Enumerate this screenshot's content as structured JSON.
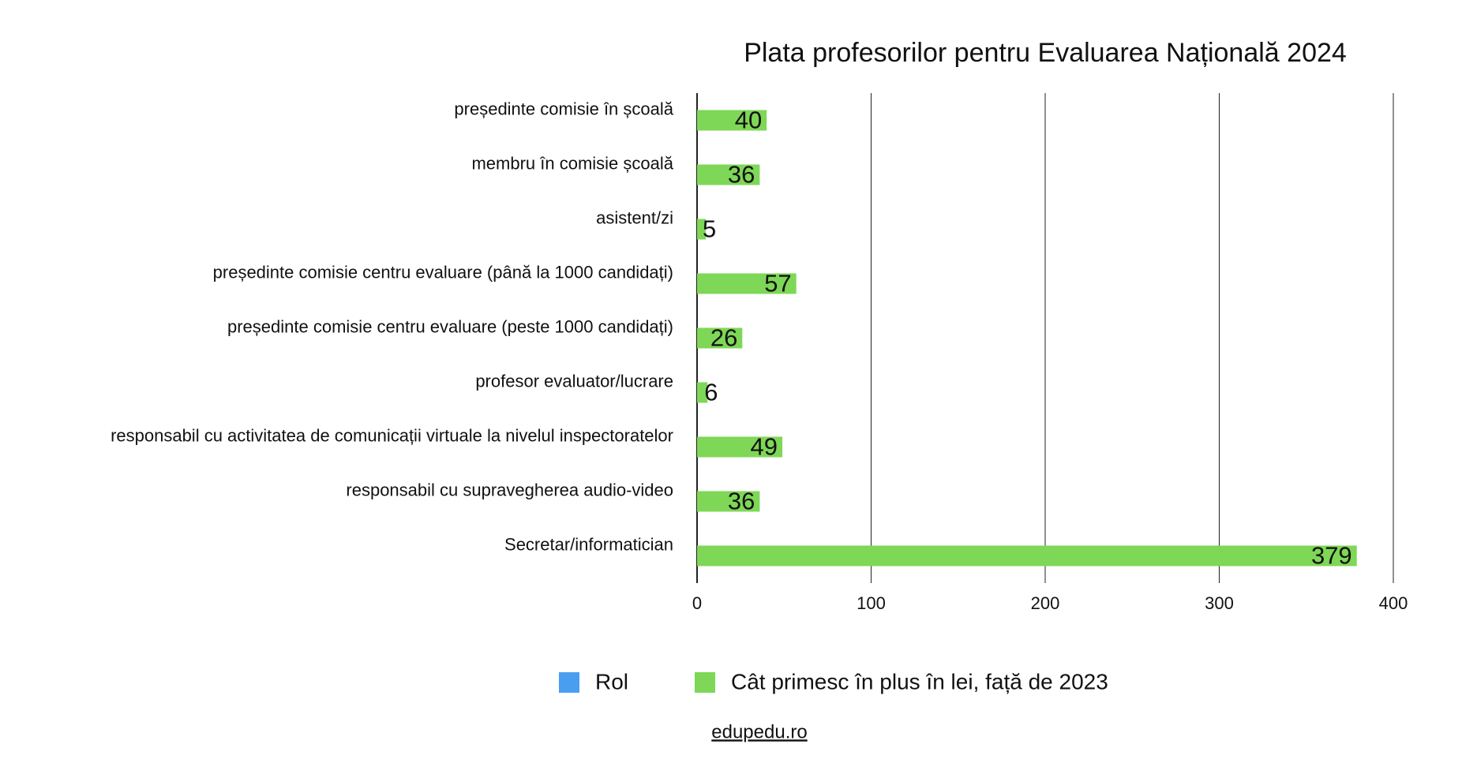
{
  "chart_data": {
    "type": "bar",
    "orientation": "horizontal",
    "title": "Plata profesorilor pentru Evaluarea Națională 2024",
    "categories": [
      "președinte comisie în școală",
      "membru în comisie școală",
      "asistent/zi",
      "președinte comisie centru evaluare (până la 1000 candidați)",
      "președinte comisie centru evaluare (peste 1000 candidați)",
      "profesor evaluator/lucrare",
      "responsabil cu activitatea de comunicații virtuale la nivelul inspectoratelor",
      "responsabil cu supravegherea audio-video",
      "Secretar/informatician"
    ],
    "series": [
      {
        "name": "Rol",
        "color": "#4a9ef0",
        "values": [
          null,
          null,
          null,
          null,
          null,
          null,
          null,
          null,
          null
        ]
      },
      {
        "name": "Cât primesc în plus în lei, față de 2023",
        "color": "#7ed756",
        "values": [
          40,
          36,
          5,
          57,
          26,
          6,
          49,
          36,
          379
        ]
      }
    ],
    "xlim": [
      0,
      400
    ],
    "xticks": [
      0,
      100,
      200,
      300,
      400
    ],
    "grid": true,
    "source": "edupedu.ro"
  }
}
